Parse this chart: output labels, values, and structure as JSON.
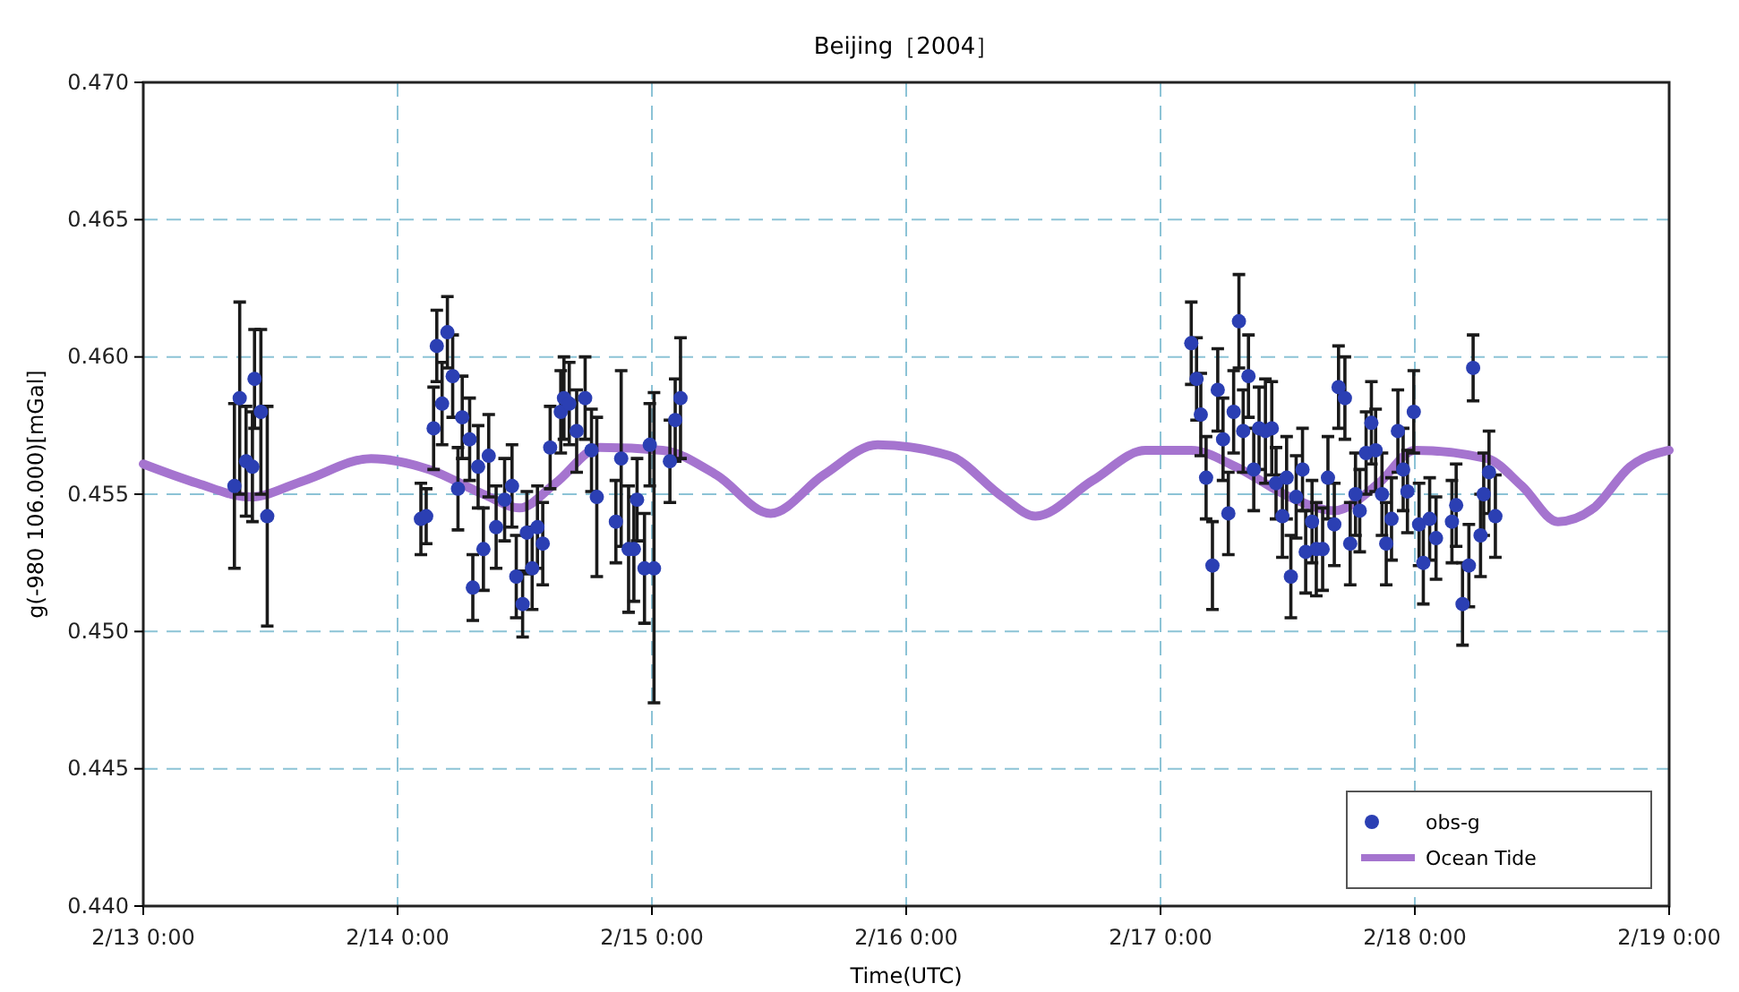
{
  "chart_data": {
    "type": "scatter",
    "title": "Beijing［2004］",
    "xlabel": "Time(UTC)",
    "ylabel": "g(-980 106.000)[mGal]",
    "xlim": [
      "2004-02-13T00:00",
      "2004-02-19T00:00"
    ],
    "xticks": [
      {
        "value": "2004-02-13T00:00",
        "label": "2/13 0:00"
      },
      {
        "value": "2004-02-14T00:00",
        "label": "2/14 0:00"
      },
      {
        "value": "2004-02-15T00:00",
        "label": "2/15 0:00"
      },
      {
        "value": "2004-02-16T00:00",
        "label": "2/16 0:00"
      },
      {
        "value": "2004-02-17T00:00",
        "label": "2/17 0:00"
      },
      {
        "value": "2004-02-18T00:00",
        "label": "2/18 0:00"
      },
      {
        "value": "2004-02-19T00:00",
        "label": "2/19 0:00"
      }
    ],
    "ylim": [
      0.44,
      0.47
    ],
    "yticks": [
      {
        "value": 0.44,
        "label": "0.440"
      },
      {
        "value": 0.445,
        "label": "0.445"
      },
      {
        "value": 0.45,
        "label": "0.450"
      },
      {
        "value": 0.455,
        "label": "0.455"
      },
      {
        "value": 0.46,
        "label": "0.460"
      },
      {
        "value": 0.465,
        "label": "0.465"
      },
      {
        "value": 0.47,
        "label": "0.470"
      }
    ],
    "grid": true,
    "legend": "bottom right",
    "series": [
      {
        "name": "obs-g",
        "marker": "circle",
        "color": "#2b3fb3",
        "x": [
          "2004-02-13T08:36",
          "2004-02-13T09:06",
          "2004-02-13T09:42",
          "2004-02-13T10:18",
          "2004-02-13T10:30",
          "2004-02-13T11:06",
          "2004-02-13T11:42",
          "2004-02-14T02:12",
          "2004-02-14T02:42",
          "2004-02-14T03:24",
          "2004-02-14T03:42",
          "2004-02-14T04:12",
          "2004-02-14T04:42",
          "2004-02-14T05:12",
          "2004-02-14T05:42",
          "2004-02-14T06:06",
          "2004-02-14T06:48",
          "2004-02-14T07:36",
          "2004-02-14T07:06",
          "2004-02-14T08:06",
          "2004-02-14T08:36",
          "2004-02-14T09:18",
          "2004-02-14T10:06",
          "2004-02-14T10:48",
          "2004-02-14T11:12",
          "2004-02-14T11:48",
          "2004-02-14T12:12",
          "2004-02-14T12:42",
          "2004-02-14T13:12",
          "2004-02-14T13:42",
          "2004-02-14T14:24",
          "2004-02-14T15:24",
          "2004-02-14T15:42",
          "2004-02-14T16:12",
          "2004-02-14T16:54",
          "2004-02-14T17:42",
          "2004-02-14T18:18",
          "2004-02-14T18:48",
          "2004-02-14T20:36",
          "2004-02-14T21:06",
          "2004-02-14T21:48",
          "2004-02-14T22:18",
          "2004-02-14T22:36",
          "2004-02-14T23:18",
          "2004-02-14T23:48",
          "2004-02-15T00:12",
          "2004-02-15T01:42",
          "2004-02-15T02:12",
          "2004-02-15T02:42",
          "2004-02-17T02:54",
          "2004-02-17T03:24",
          "2004-02-17T03:48",
          "2004-02-17T04:18",
          "2004-02-17T04:54",
          "2004-02-17T05:24",
          "2004-02-17T05:54",
          "2004-02-17T06:24",
          "2004-02-17T06:54",
          "2004-02-17T07:24",
          "2004-02-17T07:48",
          "2004-02-17T08:18",
          "2004-02-17T08:48",
          "2004-02-17T09:18",
          "2004-02-17T09:54",
          "2004-02-17T10:30",
          "2004-02-17T10:54",
          "2004-02-17T11:30",
          "2004-02-17T11:54",
          "2004-02-17T12:18",
          "2004-02-17T12:48",
          "2004-02-17T13:24",
          "2004-02-17T13:42",
          "2004-02-17T14:18",
          "2004-02-17T14:42",
          "2004-02-17T15:18",
          "2004-02-17T15:48",
          "2004-02-17T16:24",
          "2004-02-17T16:48",
          "2004-02-17T17:24",
          "2004-02-17T17:54",
          "2004-02-17T18:24",
          "2004-02-17T18:48",
          "2004-02-17T19:24",
          "2004-02-17T19:54",
          "2004-02-17T20:18",
          "2004-02-17T20:54",
          "2004-02-17T21:18",
          "2004-02-17T21:48",
          "2004-02-17T22:24",
          "2004-02-17T22:54",
          "2004-02-17T23:18",
          "2004-02-17T23:54",
          "2004-02-18T00:24",
          "2004-02-18T00:48",
          "2004-02-18T01:24",
          "2004-02-18T02:00",
          "2004-02-18T03:30",
          "2004-02-18T03:54",
          "2004-02-18T04:30",
          "2004-02-18T05:06",
          "2004-02-18T05:30",
          "2004-02-18T06:12",
          "2004-02-18T06:30",
          "2004-02-18T07:00",
          "2004-02-18T07:36"
        ],
        "values": [
          0.4553,
          0.4585,
          0.4562,
          0.456,
          0.4592,
          0.458,
          0.4542,
          0.4541,
          0.4542,
          0.4574,
          0.4604,
          0.4583,
          0.4609,
          0.4593,
          0.4552,
          0.4578,
          0.457,
          0.456,
          0.4516,
          0.453,
          0.4564,
          0.4538,
          0.4548,
          0.4553,
          0.452,
          0.451,
          0.4536,
          0.4523,
          0.4538,
          0.4532,
          0.4567,
          0.458,
          0.4585,
          0.4583,
          0.4573,
          0.4585,
          0.4566,
          0.4549,
          0.454,
          0.4563,
          0.453,
          0.453,
          0.4548,
          0.4523,
          0.4568,
          0.4523,
          0.4562,
          0.4577,
          0.4585,
          0.4605,
          0.4592,
          0.4579,
          0.4556,
          0.4524,
          0.4588,
          0.457,
          0.4543,
          0.458,
          0.4613,
          0.4573,
          0.4593,
          0.4559,
          0.4574,
          0.4573,
          0.4574,
          0.4554,
          0.4542,
          0.4556,
          0.452,
          0.4549,
          0.4559,
          0.4529,
          0.454,
          0.453,
          0.453,
          0.4556,
          0.4539,
          0.4589,
          0.4585,
          0.4532,
          0.455,
          0.4544,
          0.4565,
          0.4576,
          0.4566,
          0.455,
          0.4532,
          0.4541,
          0.4573,
          0.4559,
          0.4551,
          0.458,
          0.4539,
          0.4525,
          0.4541,
          0.4534,
          0.454,
          0.4546,
          0.451,
          0.4524,
          0.4596,
          0.4535,
          0.455,
          0.4558,
          0.4542
        ],
        "errors": [
          0.003,
          0.0035,
          0.002,
          0.002,
          0.0018,
          0.003,
          0.004,
          0.0013,
          0.001,
          0.0015,
          0.0013,
          0.0015,
          0.0013,
          0.0015,
          0.0015,
          0.0015,
          0.0015,
          0.0015,
          0.0012,
          0.0015,
          0.0015,
          0.0015,
          0.0015,
          0.0015,
          0.0015,
          0.0012,
          0.0015,
          0.0015,
          0.0015,
          0.0015,
          0.0015,
          0.0015,
          0.0015,
          0.0015,
          0.0015,
          0.0015,
          0.0015,
          0.0029,
          0.0015,
          0.0032,
          0.0023,
          0.0019,
          0.0015,
          0.002,
          0.0015,
          [
            0.4474,
            0.4587
          ],
          0.0015,
          0.0015,
          0.0022,
          0.0015,
          0.0015,
          0.0015,
          0.0015,
          0.0016,
          0.0015,
          0.0015,
          0.0015,
          0.0015,
          0.0017,
          0.0015,
          0.0015,
          0.0015,
          0.0015,
          0.0019,
          0.0017,
          0.0013,
          0.0015,
          0.0015,
          0.0015,
          0.0015,
          0.0015,
          0.0015,
          0.0015,
          0.0017,
          0.0015,
          0.0015,
          0.0015,
          0.0015,
          0.0015,
          0.0015,
          0.0015,
          0.0015,
          0.0015,
          0.0015,
          0.0015,
          0.0015,
          0.0015,
          0.0015,
          0.0015,
          0.0015,
          0.0015,
          0.0015,
          0.0015,
          0.0015,
          0.0015,
          0.0015,
          0.0015,
          0.0015,
          0.0015,
          0.0015,
          0.0012,
          0.0015,
          0.0015,
          0.0015,
          0.0015
        ]
      },
      {
        "name": "Ocean Tide",
        "type": "line",
        "marker": "none",
        "line_style": "solid",
        "color": "#a574cf",
        "x": [
          "2004-02-13T00:00",
          "2004-02-13T05:06",
          "2004-02-13T10:06",
          "2004-02-13T15:12",
          "2004-02-13T21:30",
          "2004-02-14T03:00",
          "2004-02-14T08:06",
          "2004-02-14T11:30",
          "2004-02-14T14:54",
          "2004-02-14T19:06",
          "2004-02-15T01:00",
          "2004-02-15T06:06",
          "2004-02-15T11:12",
          "2004-02-15T16:12",
          "2004-02-15T21:18",
          "2004-02-16T04:06",
          "2004-02-16T09:06",
          "2004-02-16T12:12",
          "2004-02-16T17:36",
          "2004-02-16T22:36",
          "2004-02-17T02:54",
          "2004-02-17T07:06",
          "2004-02-17T12:12",
          "2004-02-17T16:24",
          "2004-02-17T20:36",
          "2004-02-18T00:00",
          "2004-02-18T06:48",
          "2004-02-18T10:06",
          "2004-02-18T13:30",
          "2004-02-18T16:54",
          "2004-02-18T20:18",
          "2004-02-19T00:00"
        ],
        "values": [
          0.4561,
          0.4554,
          0.4549,
          0.4555,
          0.4563,
          0.4559,
          0.455,
          0.4545,
          0.4554,
          0.4567,
          0.4566,
          0.4557,
          0.4543,
          0.4557,
          0.4568,
          0.4564,
          0.4549,
          0.4542,
          0.4555,
          0.4566,
          0.4566,
          0.456,
          0.4549,
          0.4544,
          0.4554,
          0.4566,
          0.4563,
          0.4553,
          0.454,
          0.4545,
          0.456,
          0.4566
        ]
      }
    ]
  }
}
